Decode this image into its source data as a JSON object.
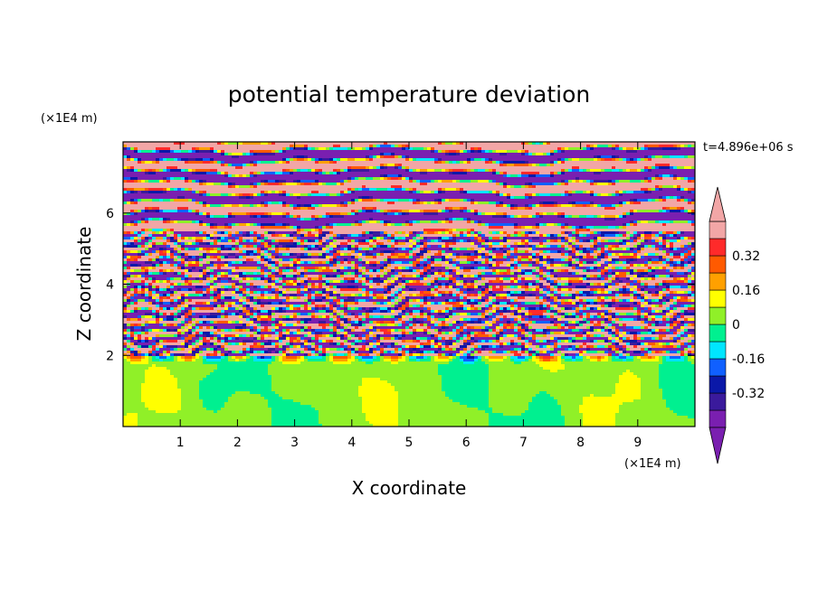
{
  "chart_data": {
    "type": "heatmap",
    "title": "potential temperature deviation",
    "xlabel": "X coordinate",
    "ylabel": "Z coordinate",
    "x_unit": "(×1E4 m)",
    "y_unit": "(×1E4 m)",
    "time_label": "t=4.896e+06 s",
    "xlim": [
      0,
      10
    ],
    "ylim": [
      0,
      8
    ],
    "x_ticks": [
      1,
      2,
      3,
      4,
      5,
      6,
      7,
      8,
      9
    ],
    "y_ticks": [
      2,
      4,
      6
    ],
    "colorbar": {
      "levels": [
        -0.48,
        -0.4,
        -0.32,
        -0.24,
        -0.16,
        -0.08,
        0,
        0.08,
        0.16,
        0.24,
        0.32,
        0.4,
        0.48
      ],
      "labels": [
        "-0.32",
        "-0.16",
        "0",
        "0.16",
        "0.32"
      ],
      "label_values": [
        -0.32,
        -0.16,
        0,
        0.16,
        0.32
      ],
      "colors": [
        "#7a1fb0",
        "#3a1a9c",
        "#0a18a8",
        "#1060ff",
        "#00e6ff",
        "#00f090",
        "#90f028",
        "#ffff00",
        "#ffa000",
        "#ff5a00",
        "#ff2a2a",
        "#f2a6a6"
      ],
      "over_color": "#f2a6a6",
      "under_color": "#7a1fb0"
    },
    "field": {
      "description_regions": [
        {
          "z_range": [
            0,
            2
          ],
          "dominant_value": 0.04
        },
        {
          "z_range": [
            2,
            5.5
          ],
          "pattern": "turbulent alternating bands"
        },
        {
          "z_range": [
            5.5,
            8
          ],
          "pattern": "alternating saturated bands"
        }
      ],
      "bands_upper": [
        {
          "z": 7.85,
          "value": -0.5
        },
        {
          "z": 7.55,
          "value": 0.5
        },
        {
          "z": 7.25,
          "value": -0.5
        },
        {
          "z": 6.95,
          "value": 0.5
        },
        {
          "z": 6.6,
          "value": -0.5
        },
        {
          "z": 6.25,
          "value": 0.5
        },
        {
          "z": 5.9,
          "value": -0.5
        },
        {
          "z": 5.6,
          "value": 0.5
        },
        {
          "z": 5.3,
          "value": -0.5
        },
        {
          "z": 5.0,
          "value": 0.5
        },
        {
          "z": 4.7,
          "value": -0.5
        },
        {
          "z": 4.4,
          "value": 0.4
        },
        {
          "z": 4.1,
          "value": -0.4
        },
        {
          "z": 3.8,
          "value": 0.5
        },
        {
          "z": 3.5,
          "value": -0.5
        },
        {
          "z": 3.2,
          "value": 0.4
        },
        {
          "z": 2.95,
          "value": -0.3
        },
        {
          "z": 2.7,
          "value": 0.5
        },
        {
          "z": 2.45,
          "value": -0.5
        },
        {
          "z": 2.2,
          "value": 0.5
        }
      ]
    }
  }
}
